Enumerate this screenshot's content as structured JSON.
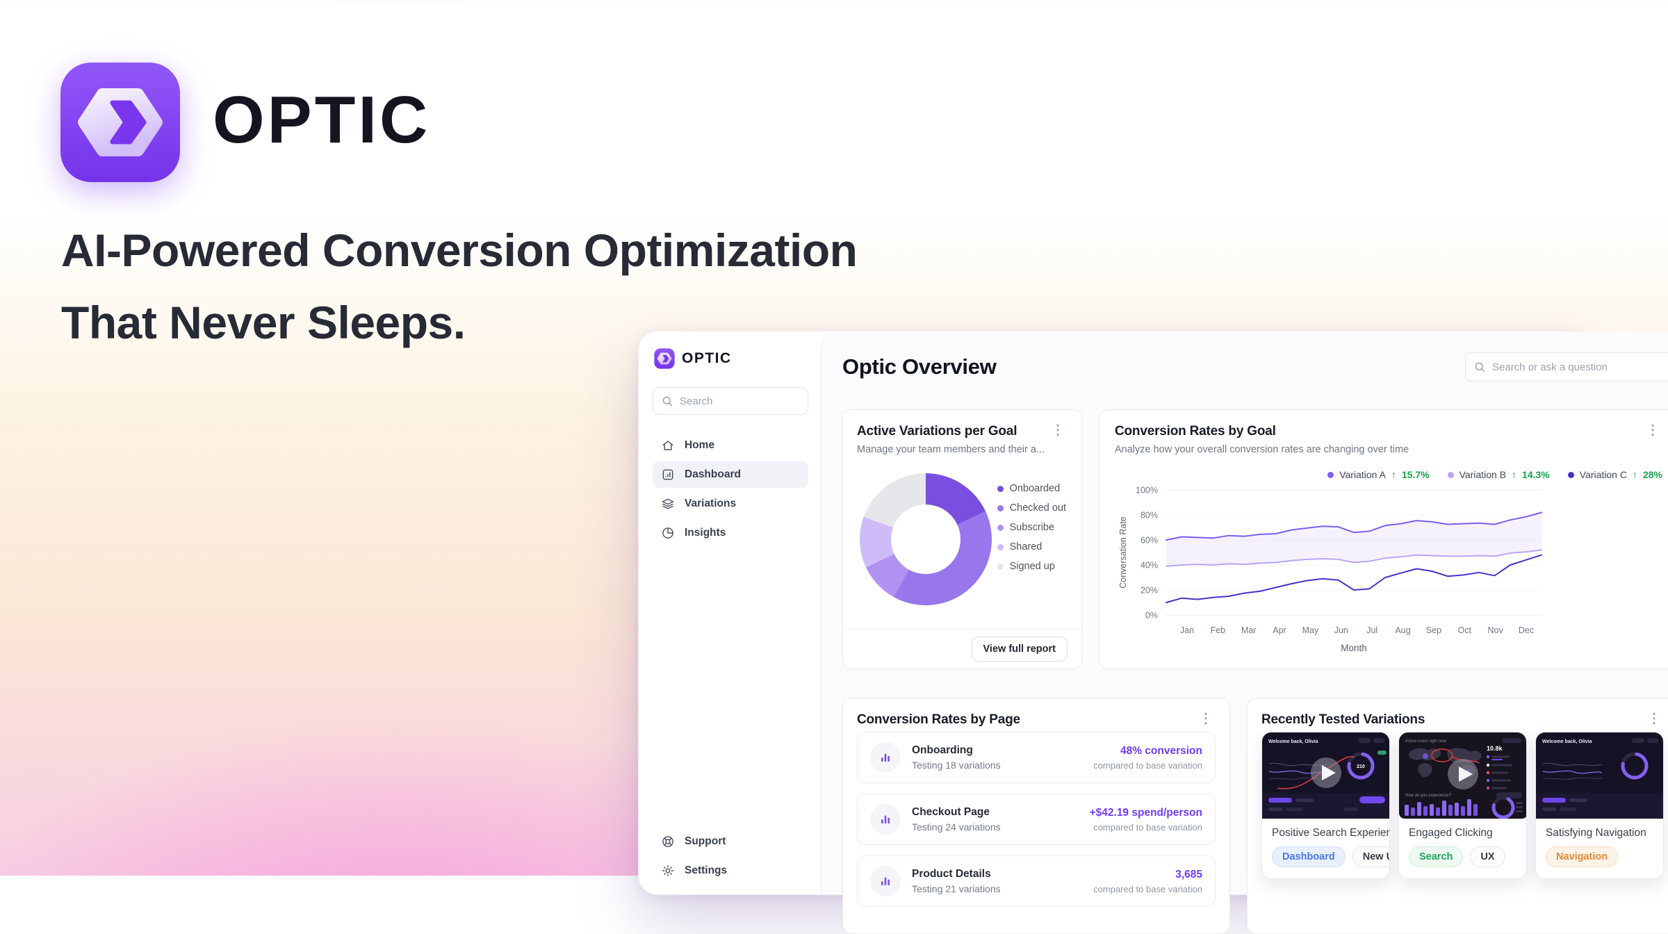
{
  "hero": {
    "brand": "OPTIC",
    "headline_line1": "AI-Powered Conversion Optimization",
    "headline_line2": "That Never Sleeps."
  },
  "colors": {
    "accent_purple": "#6d3df0",
    "positive_green": "#16a34a",
    "logo_purple_top": "#9257f8",
    "logo_purple_bottom": "#7433ea"
  },
  "icons": {
    "search": "magnifier",
    "card_menu": "kebab-vertical-dots",
    "trend": "arrow-up",
    "play": "play-triangle",
    "page_row": "bar-chart"
  },
  "sidebar": {
    "brand": "OPTIC",
    "search_placeholder": "Search",
    "nav": [
      {
        "label": "Home",
        "icon": "home-icon",
        "active": false
      },
      {
        "label": "Dashboard",
        "icon": "dashboard-icon",
        "active": true
      },
      {
        "label": "Variations",
        "icon": "layers-icon",
        "active": false
      },
      {
        "label": "Insights",
        "icon": "pie-icon",
        "active": false
      }
    ],
    "footer_nav": [
      {
        "label": "Support",
        "icon": "lifebuoy-icon"
      },
      {
        "label": "Settings",
        "icon": "gear-icon"
      }
    ]
  },
  "header": {
    "title": "Optic Overview",
    "search_placeholder": "Search or ask a question"
  },
  "cards": {
    "active_variations": {
      "title": "Active Variations per Goal",
      "subtitle": "Manage your team members and their a...",
      "button": "View full report"
    },
    "conversion_by_goal": {
      "title": "Conversion Rates by Goal",
      "subtitle": "Analyze how your overall conversion rates are changing over time"
    },
    "conversion_by_page": {
      "title": "Conversion Rates by Page",
      "rows": [
        {
          "title": "Onboarding",
          "subtitle": "Testing 18 variations",
          "value": "48% conversion",
          "note": "compared to base variation"
        },
        {
          "title": "Checkout Page",
          "subtitle": "Testing 24 variations",
          "value": "+$42.19 spend/person",
          "note": "compared to base variation"
        },
        {
          "title": "Product Details",
          "subtitle": "Testing 21 variations",
          "value": "3,685",
          "note": "compared to base variation"
        }
      ]
    },
    "recently_tested": {
      "title": "Recently Tested Variations",
      "items": [
        {
          "title": "Positive Search Experience",
          "thumb": "dashboard",
          "tags": [
            {
              "label": "Dashboard",
              "variant": "blue"
            },
            {
              "label": "New User",
              "variant": "neutral"
            }
          ]
        },
        {
          "title": "Engaged Clicking",
          "thumb": "map",
          "tags": [
            {
              "label": "Search",
              "variant": "green"
            },
            {
              "label": "UX",
              "variant": "neutral"
            }
          ]
        },
        {
          "title": "Satisfying Navigation",
          "thumb": "dashboard",
          "tags": [
            {
              "label": "Navigation",
              "variant": "orange"
            }
          ]
        }
      ],
      "thumb_text": {
        "welcome": "Welcome back, Olivia",
        "count": "10.8k"
      }
    }
  },
  "chart_data": [
    {
      "type": "donut",
      "title": "Active Variations per Goal",
      "legend_position": "right",
      "segments": [
        {
          "label": "Onboarded",
          "value": 18,
          "color": "#7a4fe0"
        },
        {
          "label": "Checked out",
          "value": 40,
          "color": "#9877ec"
        },
        {
          "label": "Subscribe",
          "value": 10,
          "color": "#b192f2"
        },
        {
          "label": "Shared",
          "value": 12.5,
          "color": "#cebbf8"
        },
        {
          "label": "Signed up",
          "value": 19.5,
          "color": "#e7e6eb"
        }
      ]
    },
    {
      "type": "line",
      "title": "Conversion Rates by Goal",
      "xlabel": "Month",
      "ylabel": "Conversation Rate",
      "ylim": [
        0,
        100
      ],
      "yticks": [
        0,
        20,
        40,
        60,
        80,
        100
      ],
      "months": [
        "Jan",
        "Feb",
        "Mar",
        "Apr",
        "May",
        "Jun",
        "Jul",
        "Aug",
        "Sep",
        "Oct",
        "Nov",
        "Dec"
      ],
      "legend_position": "top-right",
      "band_between": [
        0,
        1
      ],
      "up_arrow_color": "#16a34a",
      "series": [
        {
          "name": "Variation A",
          "delta": "15.7%",
          "color": "#7c5cf0",
          "values": [
            60,
            62.5,
            62,
            61.5,
            63.5,
            63,
            64.5,
            65,
            68,
            69.5,
            71,
            70.5,
            66,
            67,
            71.5,
            73,
            75.5,
            74.5,
            72.5,
            73,
            73.5,
            72.5,
            76,
            78.5,
            82
          ]
        },
        {
          "name": "Variation B",
          "delta": "14.3%",
          "color": "#bba4f7",
          "values": [
            39,
            40,
            40.5,
            40,
            41,
            40.5,
            41.5,
            42,
            43.5,
            44.5,
            45,
            44.5,
            42,
            43,
            45.5,
            46.5,
            48,
            47.5,
            47,
            47,
            47.5,
            47,
            49.5,
            50.5,
            52
          ]
        },
        {
          "name": "Variation C",
          "delta": "28%",
          "color": "#4b2fc9",
          "values": [
            10,
            13.5,
            12.5,
            14,
            15,
            17.5,
            19,
            22,
            25,
            27.5,
            29,
            28,
            20,
            21,
            30,
            33.5,
            37,
            35,
            31,
            32,
            34,
            31.5,
            40,
            44,
            48
          ]
        }
      ]
    }
  ]
}
